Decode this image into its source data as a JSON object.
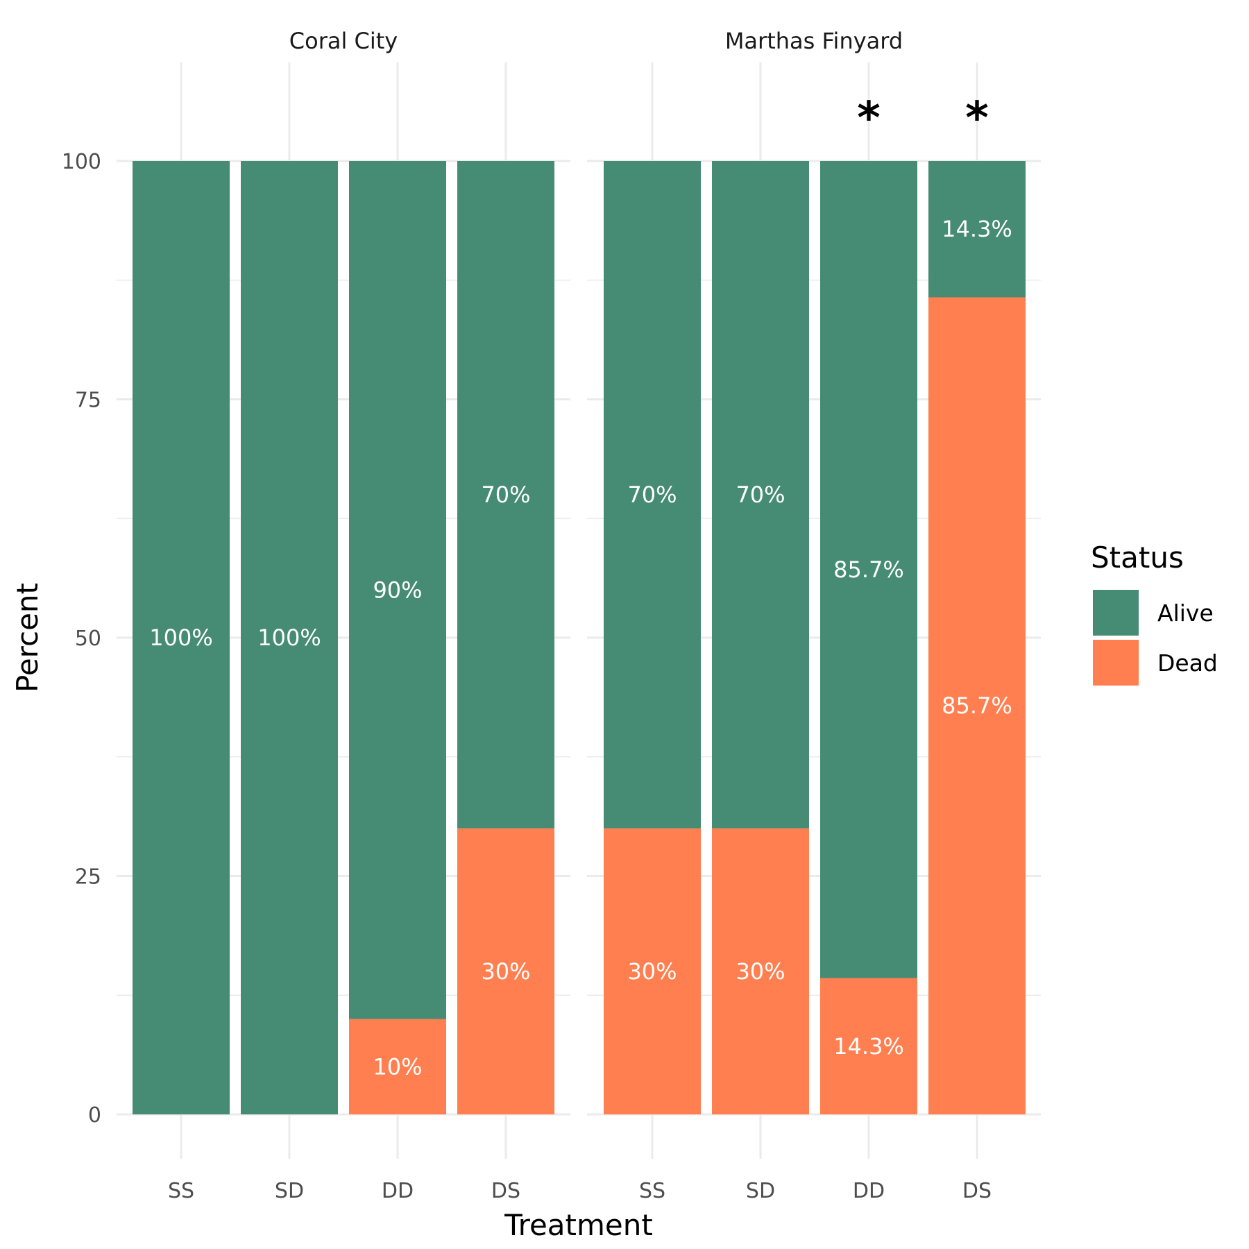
{
  "chart_data": {
    "type": "bar",
    "stacked": true,
    "xlabel": "Treatment",
    "ylabel": "Percent",
    "ylim": [
      0,
      100
    ],
    "yticks": [
      0,
      25,
      50,
      75,
      100
    ],
    "grid": true,
    "legend": {
      "title": "Status",
      "placement": "right",
      "entries": [
        {
          "name": "Alive",
          "color": "#468B73"
        },
        {
          "name": "Dead",
          "color": "#FF7F50"
        }
      ]
    },
    "categories": [
      "SS",
      "SD",
      "DD",
      "DS"
    ],
    "facets": [
      {
        "label": "Coral City",
        "series": [
          {
            "name": "Alive",
            "values": [
              100,
              100,
              90,
              70
            ],
            "labels": [
              "100%",
              "100%",
              "90%",
              "70%"
            ]
          },
          {
            "name": "Dead",
            "values": [
              0,
              0,
              10,
              30
            ],
            "labels": [
              "",
              "",
              "10%",
              "30%"
            ]
          }
        ],
        "annotations": [
          "",
          "",
          "",
          ""
        ]
      },
      {
        "label": "Marthas Finyard",
        "series": [
          {
            "name": "Alive",
            "values": [
              70,
              70,
              85.7,
              14.3
            ],
            "labels": [
              "70%",
              "70%",
              "85.7%",
              "14.3%"
            ]
          },
          {
            "name": "Dead",
            "values": [
              30,
              30,
              14.3,
              85.7
            ],
            "labels": [
              "30%",
              "30%",
              "14.3%",
              "85.7%"
            ]
          }
        ],
        "annotations": [
          "",
          "",
          "*",
          "*"
        ]
      }
    ]
  }
}
